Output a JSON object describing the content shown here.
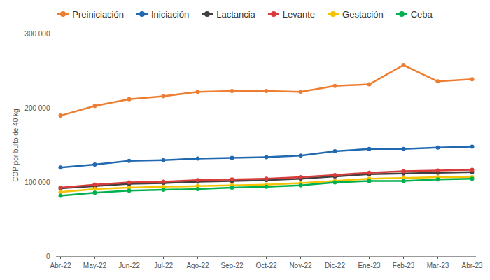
{
  "chart_data": {
    "type": "line",
    "x": [
      "Abr-22",
      "May-22",
      "Jun-22",
      "Jul-22",
      "Ago-22",
      "Sep-22",
      "Oct-22",
      "Nov-22",
      "Dic-22",
      "Ene-23",
      "Feb-23",
      "Mar-23",
      "Abr-23"
    ],
    "y_label": "COP por bulto de 40 kg",
    "ylim": [
      0,
      300000
    ],
    "yticks": [
      0,
      {
        "value": 100000,
        "label": "100 000"
      },
      {
        "value": 200000,
        "label": "200 000"
      },
      {
        "value": 300000,
        "label": "300 000"
      }
    ],
    "grid": false,
    "legend": "top",
    "marker": "circle",
    "series": [
      {
        "name": "Preiniciación",
        "color": "#ed7d31",
        "values": [
          190000,
          203000,
          212000,
          216000,
          222000,
          223000,
          223000,
          222000,
          230000,
          232000,
          258000,
          236000,
          239000
        ]
      },
      {
        "name": "Iniciación",
        "color": "#2068b0",
        "values": [
          120000,
          124000,
          129000,
          130000,
          132000,
          133000,
          134000,
          136000,
          142000,
          145000,
          145000,
          147000,
          148000
        ]
      },
      {
        "name": "Lactancia",
        "color": "#404040",
        "values": [
          92000,
          95000,
          98000,
          99000,
          101000,
          102000,
          103000,
          105000,
          108000,
          111000,
          112000,
          113000,
          114000
        ]
      },
      {
        "name": "Levante",
        "color": "#d93a3a",
        "values": [
          93000,
          97000,
          100000,
          101000,
          103000,
          104000,
          105000,
          107000,
          110000,
          113000,
          115000,
          116000,
          117000
        ]
      },
      {
        "name": "Gestación",
        "color": "#f5c200",
        "values": [
          87000,
          91000,
          93000,
          94000,
          95000,
          96000,
          97000,
          99000,
          102000,
          105000,
          106000,
          107000,
          107000
        ]
      },
      {
        "name": "Ceba",
        "color": "#00b04f",
        "values": [
          82000,
          86000,
          89000,
          90000,
          91000,
          93000,
          94000,
          96000,
          100000,
          102000,
          102000,
          104000,
          105000
        ]
      }
    ]
  }
}
